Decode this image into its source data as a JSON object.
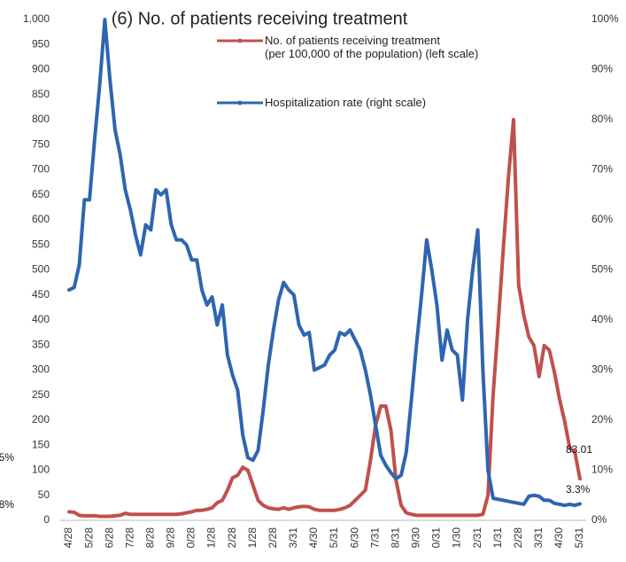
{
  "chart_data": {
    "type": "line",
    "title": "(6) No. of patients receiving treatment",
    "categories": [
      "4/28",
      null,
      null,
      null,
      "5/28",
      null,
      null,
      null,
      "6/28",
      null,
      null,
      null,
      "7/28",
      null,
      null,
      null,
      "8/28",
      null,
      null,
      null,
      "9/28",
      null,
      null,
      null,
      "0/28",
      null,
      null,
      null,
      "1/28",
      null,
      null,
      null,
      "2/28",
      null,
      null,
      null,
      "1/28",
      null,
      null,
      null,
      "2/28",
      null,
      null,
      null,
      "3/31",
      null,
      null,
      null,
      "4/30",
      null,
      null,
      null,
      "5/31",
      null,
      null,
      null,
      "6/30",
      null,
      null,
      null,
      "7/31",
      null,
      null,
      null,
      "8/31",
      null,
      null,
      null,
      "9/30",
      null,
      null,
      null,
      "0/31",
      null,
      null,
      null,
      "1/30",
      null,
      null,
      null,
      "2/31",
      null,
      null,
      null,
      "1/31",
      null,
      null,
      null,
      "2/28",
      null,
      null,
      null,
      "3/31",
      null,
      null,
      null,
      "4/30",
      null,
      null,
      null,
      "5/31"
    ],
    "series": [
      {
        "name": "No. of patients receiving treatment\n(per 100,000 of the population) (left scale)",
        "color": "#c0504d",
        "values": [
          17,
          16,
          10,
          9,
          9,
          9,
          8,
          8,
          8,
          9,
          10,
          14,
          12,
          12,
          12,
          12,
          12,
          12,
          12,
          12,
          12,
          12,
          13,
          15,
          17,
          20,
          20,
          22,
          25,
          35,
          40,
          60,
          85,
          90,
          106,
          100,
          70,
          40,
          30,
          25,
          23,
          22,
          25,
          22,
          25,
          27,
          28,
          27,
          22,
          20,
          20,
          20,
          20,
          22,
          25,
          30,
          40,
          50,
          60,
          120,
          190,
          228,
          228,
          180,
          80,
          30,
          15,
          12,
          10,
          10,
          10,
          10,
          10,
          10,
          10,
          10,
          10,
          10,
          10,
          10,
          10,
          12,
          50,
          250,
          393,
          543,
          685,
          800,
          470,
          410,
          366,
          349,
          287,
          349,
          340,
          296,
          242,
          198,
          145,
          136,
          83.01
        ]
      },
      {
        "name": "Hospitalization rate (right scale)",
        "color": "#2f65b0",
        "axis": "y2",
        "values": [
          46,
          46.5,
          51,
          64,
          64,
          76,
          87,
          100,
          88,
          78,
          73,
          66,
          62,
          57,
          53,
          59,
          58,
          66,
          65,
          66,
          59,
          56,
          56,
          55,
          52,
          52,
          46,
          43,
          44.6,
          39,
          43,
          33,
          29,
          26,
          17,
          12.5,
          12,
          14,
          22,
          31,
          38,
          44,
          47.5,
          46,
          45,
          39,
          37,
          37.5,
          30,
          30.5,
          31,
          33,
          34,
          37.5,
          37,
          38,
          36,
          34,
          30,
          25,
          19,
          13,
          11,
          9.5,
          8.3,
          9,
          13.6,
          24,
          35,
          45,
          56,
          50,
          43,
          32,
          38,
          34,
          33,
          24,
          40,
          50,
          58,
          30,
          10,
          4.4,
          4.2,
          4,
          3.8,
          3.6,
          3.4,
          3.2,
          4.8,
          5,
          4.8,
          4,
          4,
          3.4,
          3.2,
          3,
          3.2,
          3,
          3.3
        ]
      }
    ],
    "ylim": [
      0,
      1000
    ],
    "yticks": [
      0,
      50,
      100,
      150,
      200,
      250,
      300,
      350,
      400,
      450,
      500,
      550,
      600,
      650,
      700,
      750,
      800,
      850,
      900,
      950,
      {
        "value": 1000,
        "label": "1,000"
      }
    ],
    "y2lim": [
      0,
      100
    ],
    "y2ticks": [
      {
        "value": 0,
        "label": "0%"
      },
      {
        "value": 10,
        "label": "10%"
      },
      {
        "value": 20,
        "label": "20%"
      },
      {
        "value": 30,
        "label": "30%"
      },
      {
        "value": 40,
        "label": "40%"
      },
      {
        "value": 50,
        "label": "50%"
      },
      {
        "value": 60,
        "label": "60%"
      },
      {
        "value": 70,
        "label": "70%"
      },
      {
        "value": 80,
        "label": "80%"
      },
      {
        "value": 90,
        "label": "90%"
      },
      {
        "value": 100,
        "label": "100%"
      }
    ],
    "annotations": [
      "83.01",
      "3.3%",
      "5%",
      "8%"
    ],
    "grid": false
  }
}
